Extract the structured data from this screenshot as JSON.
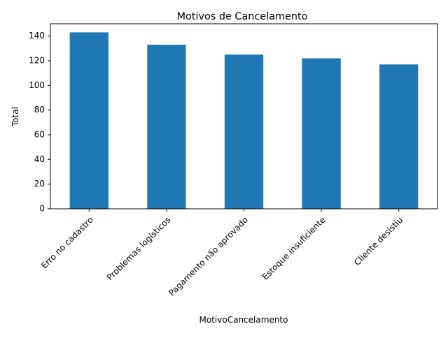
{
  "chart_data": {
    "type": "bar",
    "title": "Motivos de Cancelamento",
    "xlabel": "MotivoCancelamento",
    "ylabel": "Total",
    "categories": [
      "Erro no cadastro",
      "Problemas logísticos",
      "Pagamento não aprovado",
      "Estoque insuficiente",
      "Cliente desistiu"
    ],
    "values": [
      143,
      133,
      125,
      122,
      117
    ],
    "ylim": [
      0,
      150
    ],
    "yticks": [
      0,
      20,
      40,
      60,
      80,
      100,
      120,
      140
    ],
    "grid": false,
    "bar_color": "#1f77b4",
    "x_tick_rotation": 45
  }
}
